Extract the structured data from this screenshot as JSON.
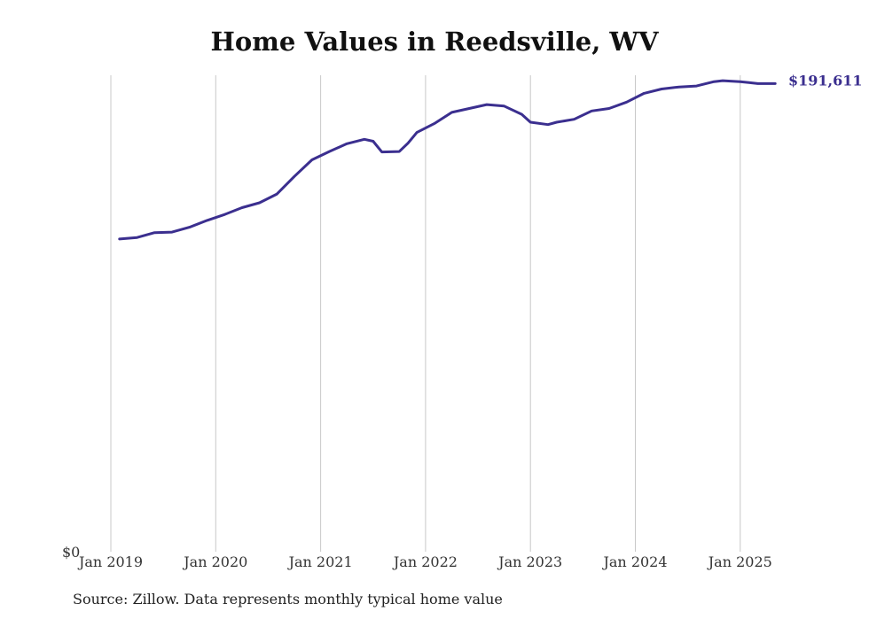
{
  "title": "Home Values in Reedsville, WV",
  "source": "Source: Zillow. Data represents monthly typical home value",
  "colors": {
    "line": "#3b2f8f",
    "grid": "#c8c8c8",
    "text": "#333333"
  },
  "chart_data": {
    "type": "line",
    "title": "Home Values in Reedsville, WV",
    "xlabel": "",
    "ylabel": "",
    "ylim": [
      0,
      195000
    ],
    "y_tick_labels": [
      "$0"
    ],
    "x_ticks": [
      2019,
      2020,
      2021,
      2022,
      2023,
      2024,
      2025
    ],
    "x_tick_labels": [
      "Jan 2019",
      "Jan 2020",
      "Jan 2021",
      "Jan 2022",
      "Jan 2023",
      "Jan 2024",
      "Jan 2025"
    ],
    "grid": "vertical",
    "end_label": "$191,611",
    "series": [
      {
        "x": [
          2019.083,
          2019.25,
          2019.417,
          2019.583,
          2019.75,
          2019.917,
          2020.083,
          2020.25,
          2020.417,
          2020.583,
          2020.75,
          2020.917,
          2021.083,
          2021.25,
          2021.417,
          2021.5,
          2021.583,
          2021.75,
          2021.833,
          2021.917,
          2022.083,
          2022.25,
          2022.417,
          2022.583,
          2022.75,
          2022.917,
          2023.0,
          2023.167,
          2023.25,
          2023.417,
          2023.583,
          2023.75,
          2023.917,
          2024.083,
          2024.25,
          2024.417,
          2024.583,
          2024.75,
          2024.833,
          2025.0,
          2025.083,
          2025.167,
          2025.333
        ],
        "values": [
          128000,
          128600,
          130600,
          130800,
          132800,
          135600,
          138000,
          140800,
          142800,
          146400,
          153600,
          160400,
          163800,
          167000,
          168800,
          168000,
          163600,
          163800,
          167200,
          171600,
          175200,
          179800,
          181400,
          183000,
          182400,
          179000,
          175800,
          174800,
          175800,
          177000,
          180400,
          181400,
          184000,
          187600,
          189400,
          190200,
          190600,
          192400,
          192800,
          192400,
          192000,
          191611,
          191611
        ]
      }
    ]
  }
}
